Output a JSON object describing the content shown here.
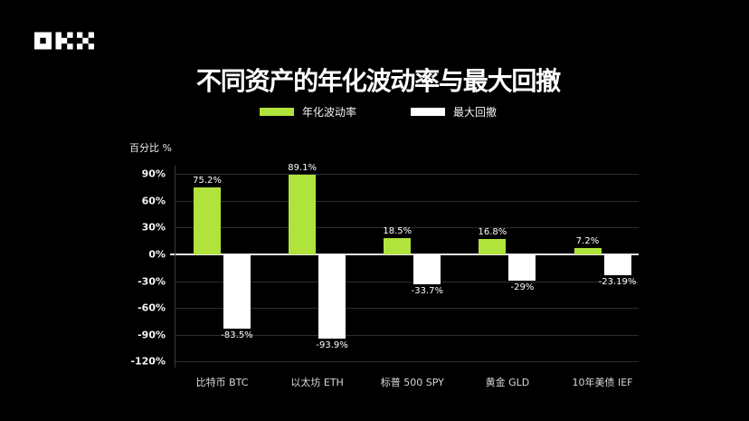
{
  "page": {
    "background": "#000000",
    "text_color": "#ffffff"
  },
  "logo": {
    "name": "OKX",
    "color": "#ffffff"
  },
  "header": {
    "title": "不同资产的年化波动率与最大回撤"
  },
  "legend": {
    "items": [
      {
        "label": "年化波动率",
        "color": "#b0e43c"
      },
      {
        "label": "最大回撤",
        "color": "#ffffff"
      }
    ]
  },
  "chart_data": {
    "type": "bar",
    "title": "不同资产的年化波动率与最大回撤",
    "ylabel": "百分比 %",
    "xlabel": "",
    "categories": [
      "比特币 BTC",
      "以太坊 ETH",
      "标普 500 SPY",
      "黄金 GLD",
      "10年美债 IEF"
    ],
    "series": [
      {
        "name": "年化波动率",
        "color": "#b0e43c",
        "values": [
          75.2,
          89.1,
          18.5,
          16.8,
          7.2
        ],
        "labels": [
          "75.2%",
          "89.1%",
          "18.5%",
          "16.8%",
          "7.2%"
        ]
      },
      {
        "name": "最大回撤",
        "color": "#ffffff",
        "values": [
          -83.5,
          -93.9,
          -33.7,
          -29,
          -23.19
        ],
        "labels": [
          "-83.5%",
          "-93.9%",
          "-33.7%",
          "-29%",
          "-23.19%"
        ]
      }
    ],
    "yticks": [
      90,
      60,
      30,
      0,
      -30,
      -60,
      -90,
      -120
    ],
    "ytick_labels": [
      "90%",
      "60%",
      "30%",
      "0%",
      "-30%",
      "-60%",
      "-90%",
      "-120%"
    ],
    "ylim": [
      -132,
      100
    ],
    "grid": true,
    "zero_line_color": "#e6e6e6",
    "gridline_color": "#2d2d2d",
    "legend_position": "top"
  }
}
